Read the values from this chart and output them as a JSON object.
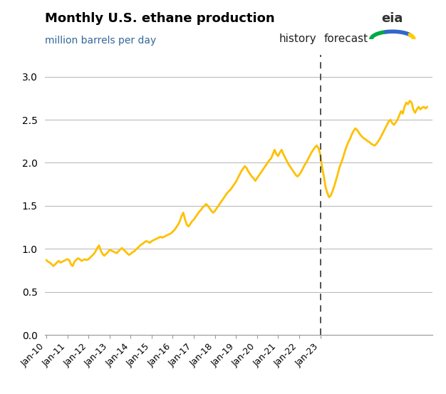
{
  "title": "Monthly U.S. ethane production",
  "subtitle": "million barrels per day",
  "title_color": "#000000",
  "subtitle_color": "#336699",
  "line_color": "#FFC000",
  "line_width": 2.0,
  "background_color": "#FFFFFF",
  "grid_color": "#BBBBBB",
  "ylim": [
    0.0,
    3.25
  ],
  "yticks": [
    0.0,
    0.5,
    1.0,
    1.5,
    2.0,
    2.5,
    3.0
  ],
  "vline_color": "#444444",
  "history_label": "history",
  "forecast_label": "forecast",
  "xtick_labels": [
    "Jan-10",
    "Jan-11",
    "Jan-12",
    "Jan-13",
    "Jan-14",
    "Jan-15",
    "Jan-16",
    "Jan-17",
    "Jan-18",
    "Jan-19",
    "Jan-20",
    "Jan-21",
    "Jan-22",
    "Jan-23"
  ],
  "data": [
    0.87,
    0.85,
    0.84,
    0.82,
    0.8,
    0.82,
    0.84,
    0.86,
    0.84,
    0.85,
    0.86,
    0.87,
    0.88,
    0.87,
    0.82,
    0.8,
    0.85,
    0.87,
    0.89,
    0.88,
    0.86,
    0.87,
    0.88,
    0.87,
    0.88,
    0.9,
    0.92,
    0.94,
    0.97,
    1.01,
    1.04,
    0.98,
    0.94,
    0.92,
    0.94,
    0.96,
    0.99,
    0.98,
    0.97,
    0.96,
    0.95,
    0.97,
    0.99,
    1.01,
    0.99,
    0.97,
    0.95,
    0.93,
    0.94,
    0.96,
    0.97,
    0.99,
    1.01,
    1.03,
    1.05,
    1.06,
    1.08,
    1.09,
    1.08,
    1.07,
    1.09,
    1.1,
    1.11,
    1.12,
    1.13,
    1.14,
    1.13,
    1.14,
    1.15,
    1.16,
    1.17,
    1.18,
    1.2,
    1.22,
    1.25,
    1.28,
    1.32,
    1.38,
    1.42,
    1.34,
    1.28,
    1.26,
    1.29,
    1.32,
    1.34,
    1.37,
    1.4,
    1.43,
    1.45,
    1.48,
    1.5,
    1.52,
    1.5,
    1.47,
    1.44,
    1.42,
    1.44,
    1.47,
    1.5,
    1.53,
    1.56,
    1.59,
    1.62,
    1.65,
    1.67,
    1.69,
    1.72,
    1.75,
    1.78,
    1.82,
    1.86,
    1.9,
    1.93,
    1.96,
    1.94,
    1.9,
    1.87,
    1.84,
    1.82,
    1.79,
    1.82,
    1.85,
    1.88,
    1.91,
    1.94,
    1.97,
    2.0,
    2.03,
    2.05,
    2.1,
    2.15,
    2.1,
    2.08,
    2.12,
    2.15,
    2.1,
    2.06,
    2.02,
    1.98,
    1.95,
    1.92,
    1.89,
    1.86,
    1.84,
    1.86,
    1.89,
    1.93,
    1.97,
    2.0,
    2.04,
    2.08,
    2.12,
    2.15,
    2.18,
    2.2,
    2.17,
    2.1,
    1.95,
    1.85,
    1.72,
    1.65,
    1.6,
    1.62,
    1.67,
    1.73,
    1.8,
    1.87,
    1.95,
    2.0,
    2.06,
    2.13,
    2.19,
    2.24,
    2.28,
    2.33,
    2.37,
    2.4,
    2.38,
    2.35,
    2.32,
    2.3,
    2.28,
    2.27,
    2.25,
    2.24,
    2.22,
    2.21,
    2.2,
    2.22,
    2.25,
    2.28,
    2.32,
    2.36,
    2.4,
    2.44,
    2.48,
    2.5,
    2.46,
    2.44,
    2.47,
    2.5,
    2.55,
    2.6,
    2.57,
    2.65,
    2.7,
    2.68,
    2.72,
    2.7,
    2.62,
    2.58,
    2.62,
    2.65,
    2.62,
    2.64,
    2.65,
    2.63,
    2.65
  ]
}
